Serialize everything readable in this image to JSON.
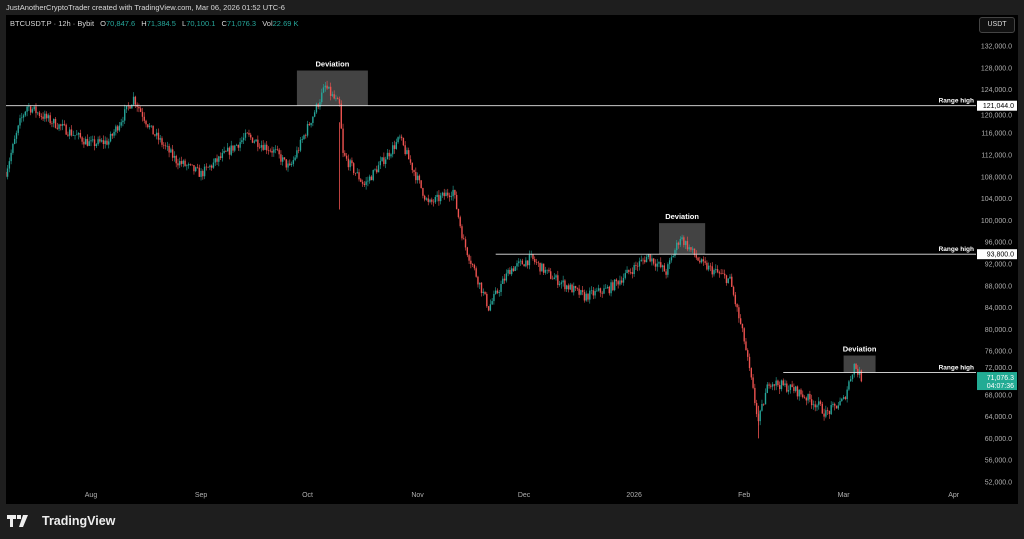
{
  "header": {
    "attribution": "JustAnotherCryptoTrader created with TradingView.com, Mar 06, 2026 01:52 UTC-6"
  },
  "legend": {
    "symbol": "BTCUSDT.P · 12h · Bybit",
    "o_label": "O",
    "o": "70,847.6",
    "h_label": "H",
    "h": "71,384.5",
    "l_label": "L",
    "l": "70,100.1",
    "c_label": "C",
    "c": "71,076.3",
    "vol_label": "Vol",
    "vol": "22.69 K"
  },
  "currency_button": "USDT",
  "footer": {
    "brand": "TradingView"
  },
  "colors": {
    "up": "#26a69a",
    "down": "#ef5350",
    "background": "#000000",
    "price_label": "#22ab94"
  },
  "chart_data": {
    "type": "candlestick",
    "timeframe": "12h",
    "ylim": [
      50000,
      134000
    ],
    "y_ticks": [
      52000,
      56000,
      60000,
      64000,
      68000,
      72000,
      76000,
      80000,
      84000,
      88000,
      92000,
      96000,
      100000,
      104000,
      108000,
      112000,
      116000,
      120000,
      124000,
      128000,
      132000
    ],
    "y_tick_labels": [
      "52,000.0",
      "56,000.0",
      "60,000.0",
      "64,000.0",
      "68,000.0",
      "72,000.0",
      "76,000.0",
      "80,000.0",
      "84,000.0",
      "88,000.0",
      "92,000.0",
      "96,000.0",
      "100,000.0",
      "104,000.0",
      "108,000.0",
      "112,000.0",
      "116,000.0",
      "120,000.0",
      "124,000.0",
      "128,000.0",
      "132,000.0"
    ],
    "x_ticks": [
      {
        "date": "2025-08-01",
        "label": "Aug"
      },
      {
        "date": "2025-09-01",
        "label": "Sep"
      },
      {
        "date": "2025-10-01",
        "label": "Oct"
      },
      {
        "date": "2025-11-01",
        "label": "Nov"
      },
      {
        "date": "2025-12-01",
        "label": "Dec"
      },
      {
        "date": "2026-01-01",
        "label": "2026"
      },
      {
        "date": "2026-02-01",
        "label": "Feb"
      },
      {
        "date": "2026-03-01",
        "label": "Mar"
      },
      {
        "date": "2026-04-01",
        "label": "Apr"
      }
    ],
    "approx_price_path": [
      [
        "2025-07-08",
        108900
      ],
      [
        "2025-07-12",
        118000
      ],
      [
        "2025-07-14",
        121000
      ],
      [
        "2025-07-20",
        118500
      ],
      [
        "2025-08-01",
        114000
      ],
      [
        "2025-08-06",
        114500
      ],
      [
        "2025-08-13",
        122500
      ],
      [
        "2025-08-18",
        116500
      ],
      [
        "2025-08-25",
        111000
      ],
      [
        "2025-09-01",
        108500
      ],
      [
        "2025-09-14",
        115500
      ],
      [
        "2025-09-22",
        112500
      ],
      [
        "2025-09-26",
        109500
      ],
      [
        "2025-10-02",
        118500
      ],
      [
        "2025-10-06",
        124500
      ],
      [
        "2025-10-10",
        121000
      ],
      [
        "2025-10-11",
        112000
      ],
      [
        "2025-10-17",
        106500
      ],
      [
        "2025-10-27",
        115000
      ],
      [
        "2025-11-04",
        103000
      ],
      [
        "2025-11-07",
        104000
      ],
      [
        "2025-11-11",
        105500
      ],
      [
        "2025-11-14",
        96000
      ],
      [
        "2025-11-21",
        84000
      ],
      [
        "2025-11-27",
        91000
      ],
      [
        "2025-12-03",
        93000
      ],
      [
        "2025-12-08",
        90000
      ],
      [
        "2025-12-18",
        86000
      ],
      [
        "2025-12-25",
        87500
      ],
      [
        "2026-01-05",
        93500
      ],
      [
        "2026-01-10",
        90500
      ],
      [
        "2026-01-14",
        97000
      ],
      [
        "2026-01-20",
        92000
      ],
      [
        "2026-01-28",
        89000
      ],
      [
        "2026-02-01",
        78000
      ],
      [
        "2026-02-05",
        63000
      ],
      [
        "2026-02-08",
        70500
      ],
      [
        "2026-02-15",
        69000
      ],
      [
        "2026-02-22",
        66000
      ],
      [
        "2026-02-24",
        64500
      ],
      [
        "2026-03-01",
        67000
      ],
      [
        "2026-03-04",
        73500
      ],
      [
        "2026-03-06",
        71076.3
      ]
    ],
    "range_highs": [
      {
        "label": "Range high",
        "price": 121044,
        "price_label": "121,044.0",
        "from": "2025-07-08"
      },
      {
        "label": "Range high",
        "price": 93800,
        "price_label": "93,800.0",
        "from": "2025-11-23"
      },
      {
        "label": "Range high",
        "price": 72100,
        "price_label": "",
        "from": "2026-02-12"
      }
    ],
    "deviations": [
      {
        "label": "Deviation",
        "from": "2025-09-28",
        "to": "2025-10-18",
        "low": 121044,
        "high": 127500
      },
      {
        "label": "Deviation",
        "from": "2026-01-08",
        "to": "2026-01-21",
        "low": 93800,
        "high": 99500
      },
      {
        "label": "Deviation",
        "from": "2026-03-01",
        "to": "2026-03-10",
        "low": 72100,
        "high": 75200
      }
    ],
    "last_price": {
      "value": "71,076.3",
      "countdown": "04:07:36"
    }
  }
}
